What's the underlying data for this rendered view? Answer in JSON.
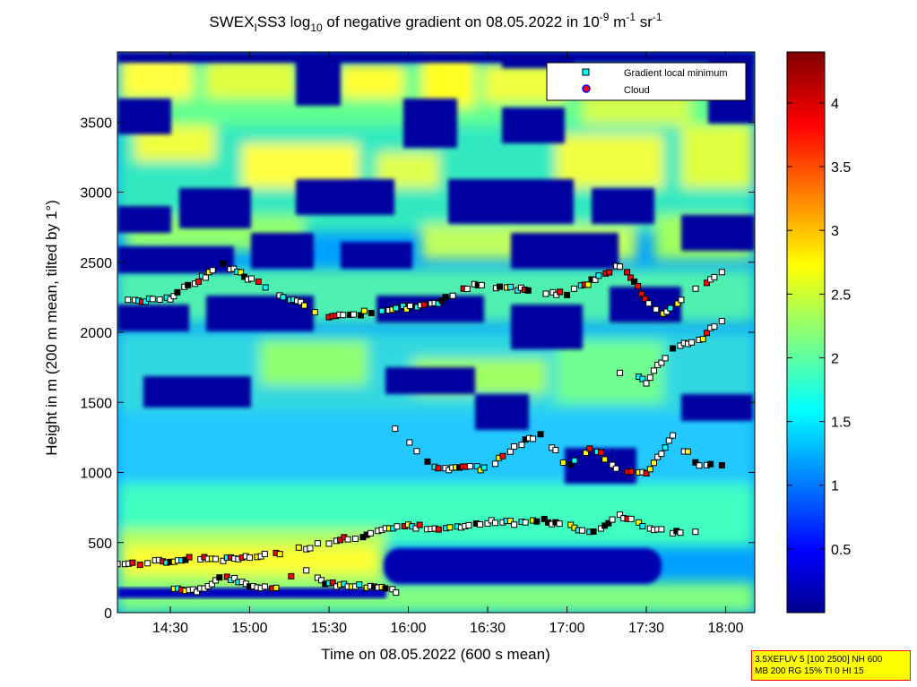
{
  "chart_data": {
    "type": "heatmap",
    "title": {
      "p1": "SWEX",
      "p1_sub": "I",
      "p2": "SS3 log",
      "p2_sub": "10",
      "p3": " of negative gradient on 08.05.2022 in 10",
      "p3_sup": "-9",
      "p4": " m",
      "p4_sup": "-1",
      "p5": " sr",
      "p5_sup": "-1"
    },
    "xlabel": "Time on 08.05.2022 (600 s mean)",
    "ylabel": "Height in m (200 m mean, tilted by 1°)",
    "x_ticks": [
      "14:30",
      "15:00",
      "15:30",
      "16:00",
      "16:30",
      "17:00",
      "17:30",
      "18:00"
    ],
    "x_tick_minutes": [
      870,
      900,
      930,
      960,
      990,
      1020,
      1050,
      1080
    ],
    "x_range_minutes": [
      850,
      1091
    ],
    "y_ticks": [
      0,
      500,
      1000,
      1500,
      2000,
      2500,
      3000,
      3500
    ],
    "y_range": [
      0,
      4000
    ],
    "colorbar": {
      "range": [
        0,
        4.4
      ],
      "ticks": [
        "0.5",
        "1",
        "1.5",
        "2",
        "2.5",
        "3",
        "3.5",
        "4"
      ],
      "tick_values": [
        0.5,
        1,
        1.5,
        2,
        2.5,
        3,
        3.5,
        4
      ],
      "colormap": "jet"
    },
    "legend": {
      "placement": "top-right",
      "entries": [
        {
          "label": "Gradient local minimum",
          "marker": "square",
          "color": "#00ffff"
        },
        {
          "label": "Cloud",
          "marker": "circle",
          "color": "#ff0000",
          "edge": "#0000ff"
        }
      ]
    },
    "layers": [
      {
        "name": "boundary-layer-top",
        "points": [
          [
            850,
            345
          ],
          [
            860,
            350
          ],
          [
            870,
            370
          ],
          [
            880,
            395
          ],
          [
            890,
            380
          ],
          [
            900,
            390
          ],
          [
            910,
            420
          ],
          [
            920,
            460
          ],
          [
            930,
            505
          ],
          [
            940,
            540
          ],
          [
            950,
            585
          ],
          [
            960,
            620
          ],
          [
            970,
            600
          ],
          [
            980,
            620
          ],
          [
            990,
            650
          ],
          [
            1000,
            640
          ],
          [
            1010,
            660
          ],
          [
            1020,
            620
          ],
          [
            1030,
            575
          ],
          [
            1040,
            700
          ],
          [
            1050,
            600
          ],
          [
            1060,
            580
          ],
          [
            1070,
            590
          ]
        ]
      },
      {
        "name": "lower-layer",
        "points": [
          [
            870,
            180
          ],
          [
            880,
            150
          ],
          [
            890,
            270
          ],
          [
            900,
            185
          ],
          [
            910,
            180
          ],
          [
            920,
            300
          ],
          [
            930,
            205
          ],
          [
            940,
            190
          ],
          [
            950,
            175
          ],
          [
            958,
            130
          ]
        ]
      },
      {
        "name": "layer-1000m",
        "points": [
          [
            955,
            1320
          ],
          [
            970,
            1030
          ],
          [
            990,
            1030
          ],
          [
            1000,
            1180
          ],
          [
            1010,
            1280
          ],
          [
            1020,
            1050
          ],
          [
            1030,
            1180
          ],
          [
            1040,
            1000
          ],
          [
            1050,
            1000
          ],
          [
            1060,
            1250
          ],
          [
            1070,
            1050
          ],
          [
            1080,
            1060
          ]
        ]
      },
      {
        "name": "layer-2000m",
        "points": [
          [
            850,
            2210
          ],
          [
            870,
            2250
          ],
          [
            890,
            2480
          ],
          [
            930,
            2100
          ],
          [
            950,
            2160
          ],
          [
            970,
            2200
          ],
          [
            985,
            2350
          ],
          [
            1000,
            2310
          ],
          [
            1020,
            2270
          ],
          [
            1040,
            2480
          ],
          [
            1055,
            2120
          ],
          [
            1070,
            2330
          ],
          [
            1080,
            2430
          ]
        ]
      },
      {
        "name": "layer-1700m",
        "points": [
          [
            1040,
            1720
          ],
          [
            1050,
            1650
          ],
          [
            1060,
            1900
          ],
          [
            1070,
            1940
          ],
          [
            1080,
            2120
          ]
        ]
      }
    ]
  },
  "stamp": {
    "line1": "3.5XEFUV 5 [100 2500] NH 600",
    "line2": "MB 200 RG 15% TI 0 HI 15"
  }
}
